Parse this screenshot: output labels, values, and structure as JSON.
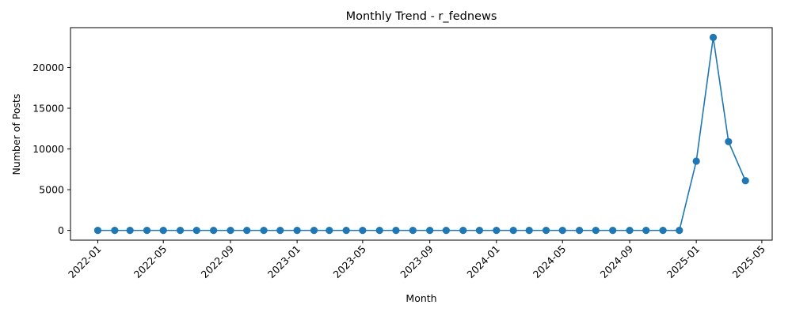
{
  "chart_data": {
    "type": "line",
    "title": "Monthly Trend - r_fednews",
    "xlabel": "Month",
    "ylabel": "Number of Posts",
    "x": [
      "2022-01",
      "2022-02",
      "2022-03",
      "2022-04",
      "2022-05",
      "2022-06",
      "2022-07",
      "2022-08",
      "2022-09",
      "2022-10",
      "2022-11",
      "2022-12",
      "2023-01",
      "2023-02",
      "2023-03",
      "2023-04",
      "2023-05",
      "2023-06",
      "2023-07",
      "2023-08",
      "2023-09",
      "2023-10",
      "2023-11",
      "2023-12",
      "2024-01",
      "2024-02",
      "2024-03",
      "2024-04",
      "2024-05",
      "2024-06",
      "2024-07",
      "2024-08",
      "2024-09",
      "2024-10",
      "2024-11",
      "2024-12",
      "2025-01",
      "2025-02",
      "2025-03",
      "2025-04"
    ],
    "series": [
      {
        "color": "#1f77b4",
        "values": [
          0,
          0,
          0,
          0,
          0,
          0,
          0,
          0,
          0,
          0,
          0,
          0,
          0,
          0,
          0,
          0,
          0,
          0,
          0,
          0,
          0,
          0,
          0,
          0,
          0,
          0,
          0,
          0,
          0,
          0,
          0,
          0,
          0,
          0,
          0,
          0,
          8500,
          23700,
          10900,
          6100
        ]
      }
    ],
    "xticks": [
      "2022-01",
      "2022-05",
      "2022-09",
      "2023-01",
      "2023-05",
      "2023-09",
      "2024-01",
      "2024-05",
      "2024-09",
      "2025-01",
      "2025-05"
    ],
    "yticks": [
      0,
      5000,
      10000,
      15000,
      20000
    ],
    "xlim": [
      "2021-11-12",
      "2025-05-20"
    ],
    "ylim": [
      -1200,
      24900
    ],
    "grid": false,
    "legend": "none"
  }
}
